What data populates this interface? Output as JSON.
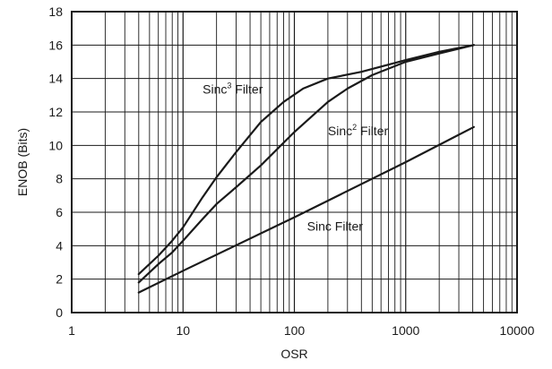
{
  "chart_data": {
    "type": "line",
    "xlabel": "OSR",
    "ylabel": "ENOB (Bits)",
    "x_scale": "log",
    "xlim": [
      1,
      10000
    ],
    "ylim": [
      0,
      18
    ],
    "x_ticks": [
      "1",
      "10",
      "100",
      "1000",
      "10000"
    ],
    "y_ticks": [
      "0",
      "2",
      "4",
      "6",
      "8",
      "10",
      "12",
      "14",
      "16",
      "18"
    ],
    "grid": true,
    "series": [
      {
        "name_parts": {
          "base": "Sinc",
          "sup": "3",
          "rest": " Filter"
        },
        "x": [
          4,
          6,
          8,
          10,
          15,
          20,
          30,
          50,
          80,
          120,
          200,
          400,
          1000,
          2000,
          4096
        ],
        "y": [
          2.3,
          3.4,
          4.3,
          5.1,
          6.9,
          8.1,
          9.6,
          11.4,
          12.6,
          13.4,
          14.0,
          14.4,
          15.1,
          15.6,
          16.0
        ]
      },
      {
        "name_parts": {
          "base": "Sinc",
          "sup": "2",
          "rest": " Filter"
        },
        "x": [
          4,
          6,
          8,
          10,
          15,
          20,
          30,
          50,
          100,
          200,
          300,
          500,
          1000,
          2000,
          4096
        ],
        "y": [
          1.8,
          2.9,
          3.6,
          4.3,
          5.6,
          6.5,
          7.5,
          8.8,
          10.8,
          12.6,
          13.4,
          14.2,
          15.0,
          15.5,
          16.0
        ]
      },
      {
        "name_parts": {
          "base": "Sinc Filter",
          "sup": "",
          "rest": ""
        },
        "x": [
          4,
          10,
          100,
          1000,
          4096
        ],
        "y": [
          1.2,
          2.5,
          5.7,
          9.0,
          11.1
        ]
      }
    ]
  }
}
